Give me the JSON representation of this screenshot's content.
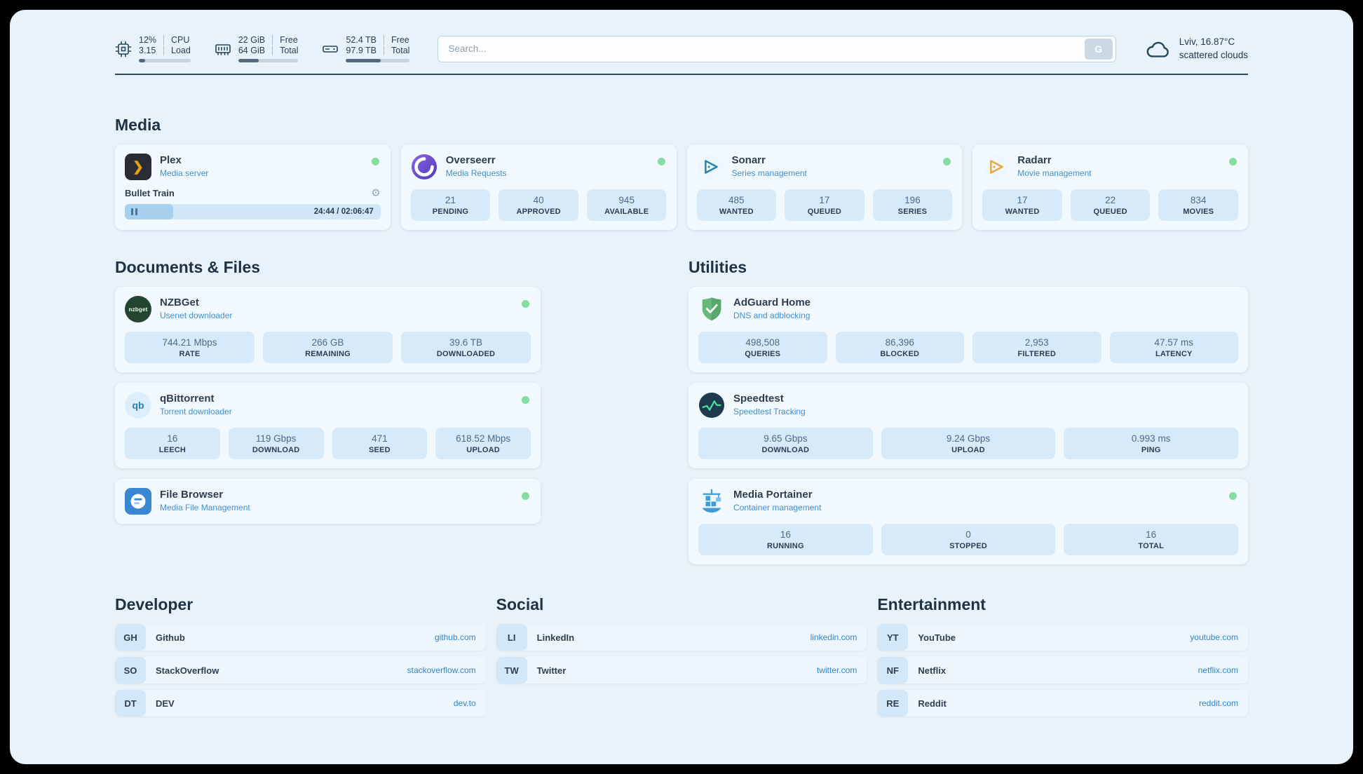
{
  "header": {
    "cpu": {
      "value1": "12%",
      "label1": "CPU",
      "value2": "3.15",
      "label2": "Load",
      "progress": 12
    },
    "ram": {
      "value1": "22 GiB",
      "label1": "Free",
      "value2": "64 GiB",
      "label2": "Total",
      "progress": 34
    },
    "disk": {
      "value1": "52.4 TB",
      "label1": "Free",
      "value2": "97.9 TB",
      "label2": "Total",
      "progress": 54
    },
    "search": {
      "placeholder": "Search...",
      "button_label": "G"
    },
    "weather": {
      "location": "Lviv, 16.87°C",
      "condition": "scattered clouds"
    }
  },
  "media": {
    "title": "Media",
    "plex": {
      "name": "Plex",
      "subtitle": "Media server",
      "now_playing": "Bullet Train",
      "time": "24:44 / 02:06:47",
      "progress": 19,
      "status": "online"
    },
    "overseerr": {
      "name": "Overseerr",
      "subtitle": "Media Requests",
      "status": "online",
      "stats": [
        {
          "value": "21",
          "label": "PENDING"
        },
        {
          "value": "40",
          "label": "APPROVED"
        },
        {
          "value": "945",
          "label": "AVAILABLE"
        }
      ]
    },
    "sonarr": {
      "name": "Sonarr",
      "subtitle": "Series management",
      "status": "online",
      "stats": [
        {
          "value": "485",
          "label": "WANTED"
        },
        {
          "value": "17",
          "label": "QUEUED"
        },
        {
          "value": "196",
          "label": "SERIES"
        }
      ]
    },
    "radarr": {
      "name": "Radarr",
      "subtitle": "Movie management",
      "status": "online",
      "stats": [
        {
          "value": "17",
          "label": "WANTED"
        },
        {
          "value": "22",
          "label": "QUEUED"
        },
        {
          "value": "834",
          "label": "MOVIES"
        }
      ]
    }
  },
  "documents": {
    "title": "Documents & Files",
    "nzbget": {
      "name": "NZBGet",
      "subtitle": "Usenet downloader",
      "status": "online",
      "stats": [
        {
          "value": "744.21 Mbps",
          "label": "RATE"
        },
        {
          "value": "266 GB",
          "label": "REMAINING"
        },
        {
          "value": "39.6 TB",
          "label": "DOWNLOADED"
        }
      ]
    },
    "qbittorrent": {
      "name": "qBittorrent",
      "subtitle": "Torrent downloader",
      "status": "online",
      "stats": [
        {
          "value": "16",
          "label": "LEECH"
        },
        {
          "value": "119 Gbps",
          "label": "DOWNLOAD"
        },
        {
          "value": "471",
          "label": "SEED"
        },
        {
          "value": "618.52 Mbps",
          "label": "UPLOAD"
        }
      ]
    },
    "filebrowser": {
      "name": "File Browser",
      "subtitle": "Media File Management",
      "status": "online"
    }
  },
  "utilities": {
    "title": "Utilities",
    "adguard": {
      "name": "AdGuard Home",
      "subtitle": "DNS and adblocking",
      "stats": [
        {
          "value": "498,508",
          "label": "QUERIES"
        },
        {
          "value": "86,396",
          "label": "BLOCKED"
        },
        {
          "value": "2,953",
          "label": "FILTERED"
        },
        {
          "value": "47.57 ms",
          "label": "LATENCY"
        }
      ]
    },
    "speedtest": {
      "name": "Speedtest",
      "subtitle": "Speedtest Tracking",
      "stats": [
        {
          "value": "9.65 Gbps",
          "label": "DOWNLOAD"
        },
        {
          "value": "9.24 Gbps",
          "label": "UPLOAD"
        },
        {
          "value": "0.993 ms",
          "label": "PING"
        }
      ]
    },
    "portainer": {
      "name": "Media Portainer",
      "subtitle": "Container management",
      "status": "online",
      "stats": [
        {
          "value": "16",
          "label": "RUNNING"
        },
        {
          "value": "0",
          "label": "STOPPED"
        },
        {
          "value": "16",
          "label": "TOTAL"
        }
      ]
    }
  },
  "bookmarks": {
    "developer": {
      "title": "Developer",
      "items": [
        {
          "abbr": "GH",
          "name": "Github",
          "url": "github.com"
        },
        {
          "abbr": "SO",
          "name": "StackOverflow",
          "url": "stackoverflow.com"
        },
        {
          "abbr": "DT",
          "name": "DEV",
          "url": "dev.to"
        }
      ]
    },
    "social": {
      "title": "Social",
      "items": [
        {
          "abbr": "LI",
          "name": "LinkedIn",
          "url": "linkedin.com"
        },
        {
          "abbr": "TW",
          "name": "Twitter",
          "url": "twitter.com"
        }
      ]
    },
    "entertainment": {
      "title": "Entertainment",
      "items": [
        {
          "abbr": "YT",
          "name": "YouTube",
          "url": "youtube.com"
        },
        {
          "abbr": "NF",
          "name": "Netflix",
          "url": "netflix.com"
        },
        {
          "abbr": "RE",
          "name": "Reddit",
          "url": "reddit.com"
        }
      ]
    }
  },
  "icons": {
    "plex_glyph": "❯",
    "gear": "⚙",
    "qbittorrent_text": "qb",
    "nzbget_text": "nzbget"
  },
  "colors": {
    "accent_blue": "#2f86d4",
    "status_green": "#83de9f",
    "panel_bg": "#e8f2fa",
    "stat_bg": "#d7eafa"
  }
}
